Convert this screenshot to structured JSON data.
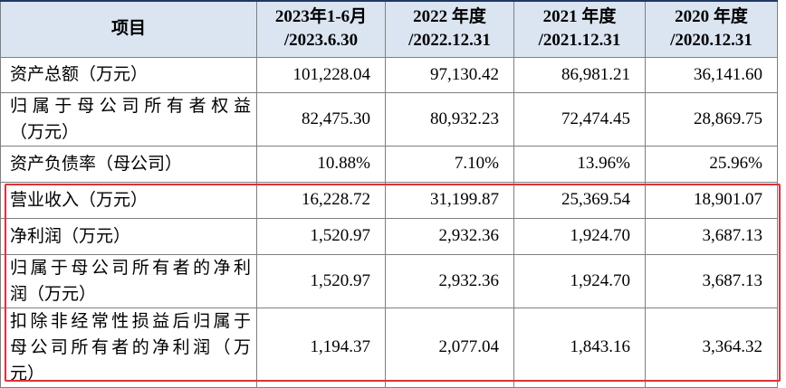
{
  "table": {
    "header": [
      [
        "项目"
      ],
      [
        "2023年1-6月",
        "/2023.6.30"
      ],
      [
        "2022 年度",
        "/2022.12.31"
      ],
      [
        "2021 年度",
        "/2021.12.31"
      ],
      [
        "2020 年度",
        "/2020.12.31"
      ]
    ],
    "rows": [
      {
        "label": [
          "资产总额（万元）"
        ],
        "values": [
          "101,228.04",
          "97,130.42",
          "86,981.21",
          "36,141.60"
        ]
      },
      {
        "label": [
          "归属于母公司所有者权益",
          "（万元）"
        ],
        "values": [
          "82,475.30",
          "80,932.23",
          "72,474.45",
          "28,869.75"
        ]
      },
      {
        "label": [
          "资产负债率（母公司）"
        ],
        "values": [
          "10.88%",
          "7.10%",
          "13.96%",
          "25.96%"
        ]
      },
      {
        "label": [
          "营业收入（万元）"
        ],
        "values": [
          "16,228.72",
          "31,199.87",
          "25,369.54",
          "18,901.07"
        ]
      },
      {
        "label": [
          "净利润（万元）"
        ],
        "values": [
          "1,520.97",
          "2,932.36",
          "1,924.70",
          "3,687.13"
        ]
      },
      {
        "label": [
          "归属于母公司所有者的净利",
          "润（万元）"
        ],
        "values": [
          "1,520.97",
          "2,932.36",
          "1,924.70",
          "3,687.13"
        ]
      },
      {
        "label": [
          "扣除非经常性损益后归属于",
          "母公司所有者的净利润（万",
          "元）"
        ],
        "values": [
          "1,194.37",
          "2,077.04",
          "1,843.16",
          "3,364.32"
        ]
      }
    ]
  }
}
